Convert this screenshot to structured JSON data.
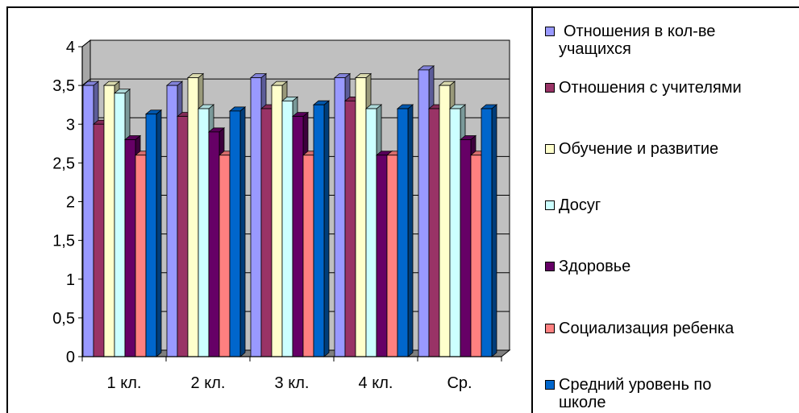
{
  "chart_data": {
    "type": "bar",
    "categories": [
      "1 кл.",
      "2 кл.",
      "3 кл.",
      "4 кл.",
      "Ср."
    ],
    "ylim": [
      0,
      4
    ],
    "yticks": [
      "0",
      "0,5",
      "1",
      "1,5",
      "2",
      "2,5",
      "3",
      "3,5",
      "4"
    ],
    "grid": true,
    "legend_position": "right",
    "series": [
      {
        "name": "Отношения в кол-ве\nучащихся",
        "color": "#9999ff",
        "values": [
          3.5,
          3.5,
          3.6,
          3.6,
          3.7
        ]
      },
      {
        "name": "Отношения с учителями",
        "color": "#993366",
        "values": [
          3.0,
          3.1,
          3.2,
          3.3,
          3.2
        ]
      },
      {
        "name": "Обучение и развитие",
        "color": "#ffffcc",
        "values": [
          3.5,
          3.6,
          3.5,
          3.6,
          3.5
        ]
      },
      {
        "name": "Досуг",
        "color": "#ccffff",
        "values": [
          3.4,
          3.2,
          3.3,
          3.2,
          3.2
        ]
      },
      {
        "name": "Здоровье",
        "color": "#660066",
        "values": [
          2.8,
          2.9,
          3.1,
          2.6,
          2.8
        ]
      },
      {
        "name": "Социализация ребенка",
        "color": "#ff8080",
        "values": [
          2.6,
          2.6,
          2.6,
          2.6,
          2.6
        ]
      },
      {
        "name": "Средний уровень по\nшколе",
        "color": "#0066cc",
        "values": [
          3.13,
          3.17,
          3.25,
          3.2,
          3.2
        ]
      }
    ]
  }
}
